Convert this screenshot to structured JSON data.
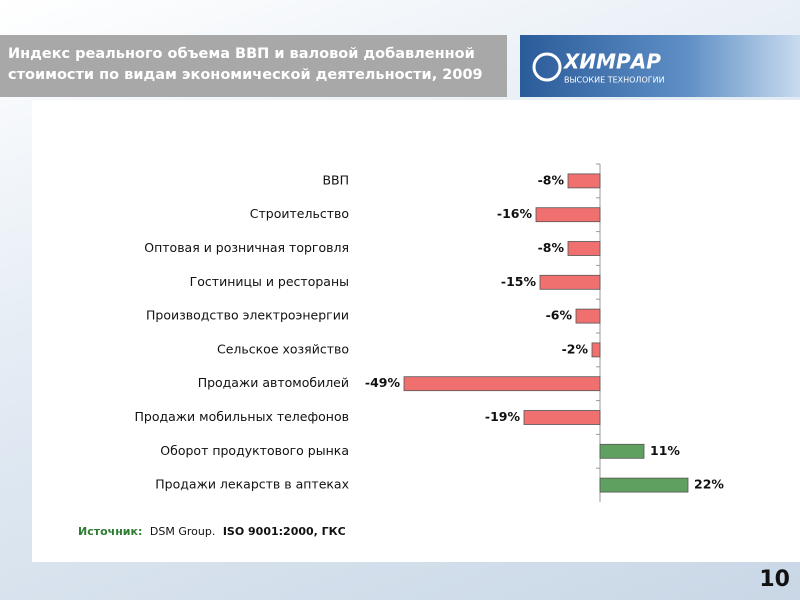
{
  "slide": {
    "logo": "ХИМРАР",
    "logo_subtitle": "ВЫСОКИЕ ТЕХНОЛОГИИ",
    "page_number": "10",
    "source": {
      "label": "Источник:",
      "text": "DSM Group.",
      "bold": "ISO 9001:2000, ГКС"
    }
  },
  "chart_data": {
    "type": "hbar",
    "title": "Индекс реального объема ВВП и валовой добавленной стоимости по видам экономической деятельности, 2009",
    "categories": [
      "ВВП",
      "Строительство",
      "Оптовая и розничная торговля",
      "Гостиницы и рестораны",
      "Производство электроэнергии",
      "Сельское хозяйство",
      "Продажи автомобилей",
      "Продажи мобильных телефонов",
      "Оборот продуктового рынка",
      "Продажи лекарств в аптеках"
    ],
    "values": [
      -8,
      -16,
      -8,
      -15,
      -6,
      -2,
      -49,
      -19,
      11,
      22
    ],
    "value_labels": [
      "-8%",
      "-16%",
      "-8%",
      "-15%",
      "-6%",
      "-2%",
      "-49%",
      "-19%",
      "11%",
      "22%"
    ],
    "colors": [
      "#f07070",
      "#f07070",
      "#f07070",
      "#f07070",
      "#f07070",
      "#f07070",
      "#f07070",
      "#f07070",
      "#5f9f5f",
      "#5f9f5f"
    ],
    "xlim": [
      -50,
      50
    ]
  }
}
